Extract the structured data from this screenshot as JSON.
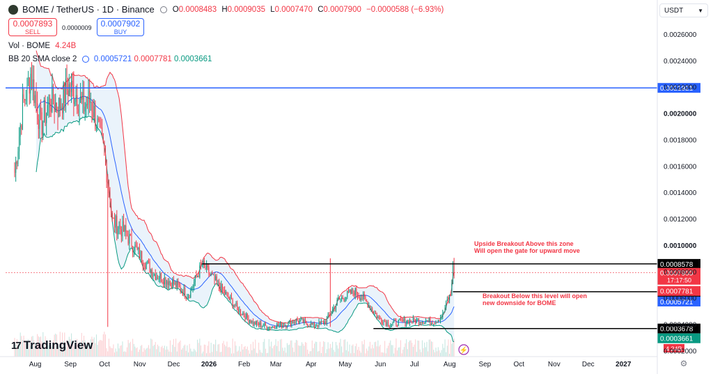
{
  "header": {
    "symbol": "BOME / TetherUS · 1D · Binance",
    "ohlc": {
      "open_label": "O",
      "open": "0.0008483",
      "high_label": "H",
      "high": "0.0009035",
      "low_label": "L",
      "low": "0.0007470",
      "close_label": "C",
      "close": "0.0007900",
      "change": "−0.0000588 (−6.93%)"
    }
  },
  "trade": {
    "sell_price": "0.0007893",
    "sell_label": "SELL",
    "spread": "0.0000009",
    "buy_price": "0.0007902",
    "buy_label": "BUY"
  },
  "legend": {
    "vol_label": "Vol · BOME",
    "vol_value": "4.24B",
    "bb_label": "BB 20 SMA close 2",
    "bb_basis": "0.0005721",
    "bb_upper": "0.0007781",
    "bb_lower": "0.0003661"
  },
  "currency": "USDT",
  "watermark": "TradingView",
  "colors": {
    "up": "#089981",
    "down": "#f23645",
    "bb_upper": "#f23645",
    "bb_basis": "#2962ff",
    "bb_lower": "#089981",
    "band_fill": "#d9eaf7",
    "hline_blue": "#2962ff",
    "annotation": "#f23645"
  },
  "chart_data": {
    "type": "candlestick",
    "title": "BOME / TetherUS · 1D · Binance",
    "x_ticks": [
      "Aug",
      "Sep",
      "Oct",
      "Nov",
      "Dec",
      "2026",
      "Feb",
      "Mar",
      "Apr",
      "May",
      "Jun",
      "Jul",
      "Aug",
      "Sep",
      "Oct",
      "Nov",
      "Dec",
      "2027"
    ],
    "y_ticks": [
      "0.0002000",
      "0.0004000",
      "0.0006000",
      "0.0008000",
      "0.0010000",
      "0.0012000",
      "0.0014000",
      "0.0016000",
      "0.0018000",
      "0.0020000",
      "0.0022000",
      "0.0024000",
      "0.0026000"
    ],
    "ylim": [
      0.000155,
      0.0027
    ],
    "price_keypoints": [
      [
        "2025-07-20",
        0.00155
      ],
      [
        "2025-07-27",
        0.00205
      ],
      [
        "2025-08-03",
        0.0023
      ],
      [
        "2025-08-12",
        0.0019
      ],
      [
        "2025-08-20",
        0.0021
      ],
      [
        "2025-08-28",
        0.00205
      ],
      [
        "2025-09-05",
        0.0022
      ],
      [
        "2025-09-12",
        0.00215
      ],
      [
        "2025-09-18",
        0.00205
      ],
      [
        "2025-09-25",
        0.0021
      ],
      [
        "2025-10-01",
        0.0019
      ],
      [
        "2025-10-07",
        0.0017
      ],
      [
        "2025-10-10",
        0.0015
      ],
      [
        "2025-10-14",
        0.00118
      ],
      [
        "2025-10-25",
        0.0011
      ],
      [
        "2025-11-05",
        0.00095
      ],
      [
        "2025-11-20",
        0.00078
      ],
      [
        "2025-12-05",
        0.00072
      ],
      [
        "2025-12-20",
        0.00062
      ],
      [
        "2026-01-01",
        0.00085
      ],
      [
        "2026-01-15",
        0.0007
      ],
      [
        "2026-02-01",
        0.00052
      ],
      [
        "2026-02-15",
        0.00041
      ],
      [
        "2026-03-01",
        0.00038
      ],
      [
        "2026-03-15",
        0.0004
      ],
      [
        "2026-03-25",
        0.00043
      ],
      [
        "2026-04-10",
        0.00039
      ],
      [
        "2026-04-20",
        0.00042
      ],
      [
        "2026-05-01",
        0.00058
      ],
      [
        "2026-05-15",
        0.00065
      ],
      [
        "2026-05-25",
        0.00058
      ],
      [
        "2026-06-05",
        0.00045
      ],
      [
        "2026-06-15",
        0.0004
      ],
      [
        "2026-06-25",
        0.00042
      ],
      [
        "2026-07-10",
        0.00043
      ],
      [
        "2026-07-25",
        0.00042
      ],
      [
        "2026-08-01",
        0.00047
      ],
      [
        "2026-08-05",
        0.00058
      ],
      [
        "2026-08-08",
        0.00062
      ],
      [
        "2026-08-10",
        0.0008475
      ],
      [
        "2026-08-11",
        0.00079
      ]
    ],
    "spikes": [
      {
        "date": "2025-10-10",
        "low": 0.00038
      },
      {
        "date": "2026-04-24",
        "high": 0.0009,
        "low": 0.00038
      }
    ],
    "bollinger": {
      "period": 20,
      "std": 2,
      "basis": 0.0005721,
      "upper": 0.0007781,
      "lower": 0.0003661
    },
    "horizontal_lines": [
      {
        "value": 0.0021921,
        "color": "#2962ff",
        "label": "0.0021921"
      },
      {
        "value": 0.0008578,
        "from": "2026-01-01",
        "color": "#000000",
        "label": "0.0008578"
      },
      {
        "value": 0.0006464,
        "from": "2026-08-10",
        "color": "#000000",
        "label": "0.0006464"
      },
      {
        "value": 0.0003678,
        "from": "2026-06-01",
        "color": "#000000",
        "label": "0.0003678"
      }
    ],
    "price_labels": [
      {
        "value": 0.00079,
        "text": "0.0007900",
        "sub": "17:17:50",
        "color": "#f23645"
      },
      {
        "value": 0.0007781,
        "text": "0.0007781",
        "color": "#f23645"
      },
      {
        "value": 0.0005721,
        "text": "0.0005721",
        "color": "#2962ff"
      },
      {
        "value": 0.0003661,
        "text": "0.0003661",
        "color": "#089981"
      }
    ],
    "volume_label": "4.24B",
    "annotations": [
      {
        "lines": [
          "Upside Breakout Above this zone",
          "Will open the gate for upward move"
        ],
        "anchor": "above-0.0008578"
      },
      {
        "lines": [
          "Breakout Below this level will open",
          "new downside for BOME"
        ],
        "anchor": "below-0.0006464"
      }
    ]
  }
}
